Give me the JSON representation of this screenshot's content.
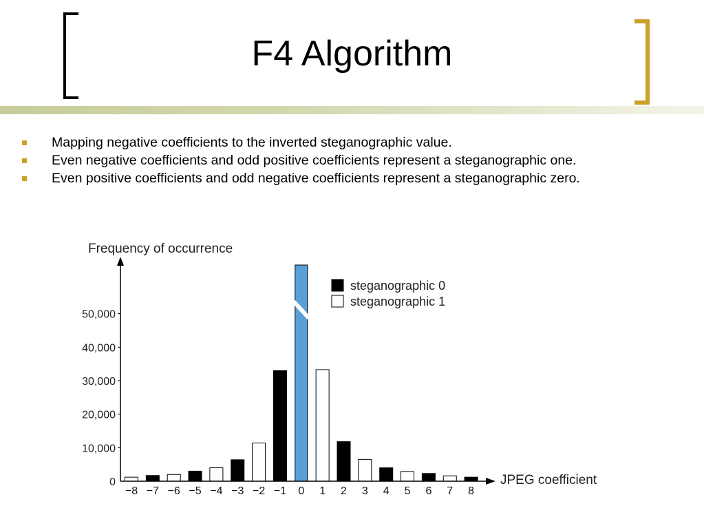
{
  "slide": {
    "title": "F4 Algorithm",
    "bullets": [
      "Mapping negative coefficients to the inverted steganographic value.",
      "Even negative coefficients and odd positive coefficients represent a steganographic one.",
      "Even positive coefficients and odd negative coefficients represent a steganographic zero."
    ],
    "colors": {
      "bullet": "#c9a227",
      "bracket_right": "#c9a227",
      "highlight_bar": "#5aa0d8"
    }
  },
  "chart_data": {
    "type": "bar",
    "title": "",
    "ylabel": "Frequency of occurrence",
    "xlabel": "JPEG coefficient",
    "ylim": [
      0,
      60000
    ],
    "yticks": [
      0,
      10000,
      20000,
      30000,
      40000,
      50000
    ],
    "ytick_labels": [
      "0",
      "10,000",
      "20,000",
      "30,000",
      "40,000",
      "50,000"
    ],
    "categories": [
      "−8",
      "−7",
      "−6",
      "−5",
      "−4",
      "−3",
      "−2",
      "−1",
      "0",
      "1",
      "2",
      "3",
      "4",
      "5",
      "6",
      "7",
      "8"
    ],
    "values": [
      1200,
      1700,
      2000,
      3000,
      4000,
      6400,
      11400,
      33000,
      65000,
      33300,
      11800,
      6500,
      4000,
      2900,
      2300,
      1600,
      1200
    ],
    "bar_kind": [
      "one",
      "zero",
      "one",
      "zero",
      "one",
      "zero",
      "one",
      "zero",
      "none",
      "one",
      "zero",
      "one",
      "zero",
      "one",
      "zero",
      "one",
      "zero"
    ],
    "broken_bar": "0",
    "legend": [
      {
        "label": "steganographic 0",
        "fill": "#000000"
      },
      {
        "label": "steganographic 1",
        "fill": "#ffffff"
      }
    ],
    "legend_position": "top-right",
    "grid": false
  }
}
